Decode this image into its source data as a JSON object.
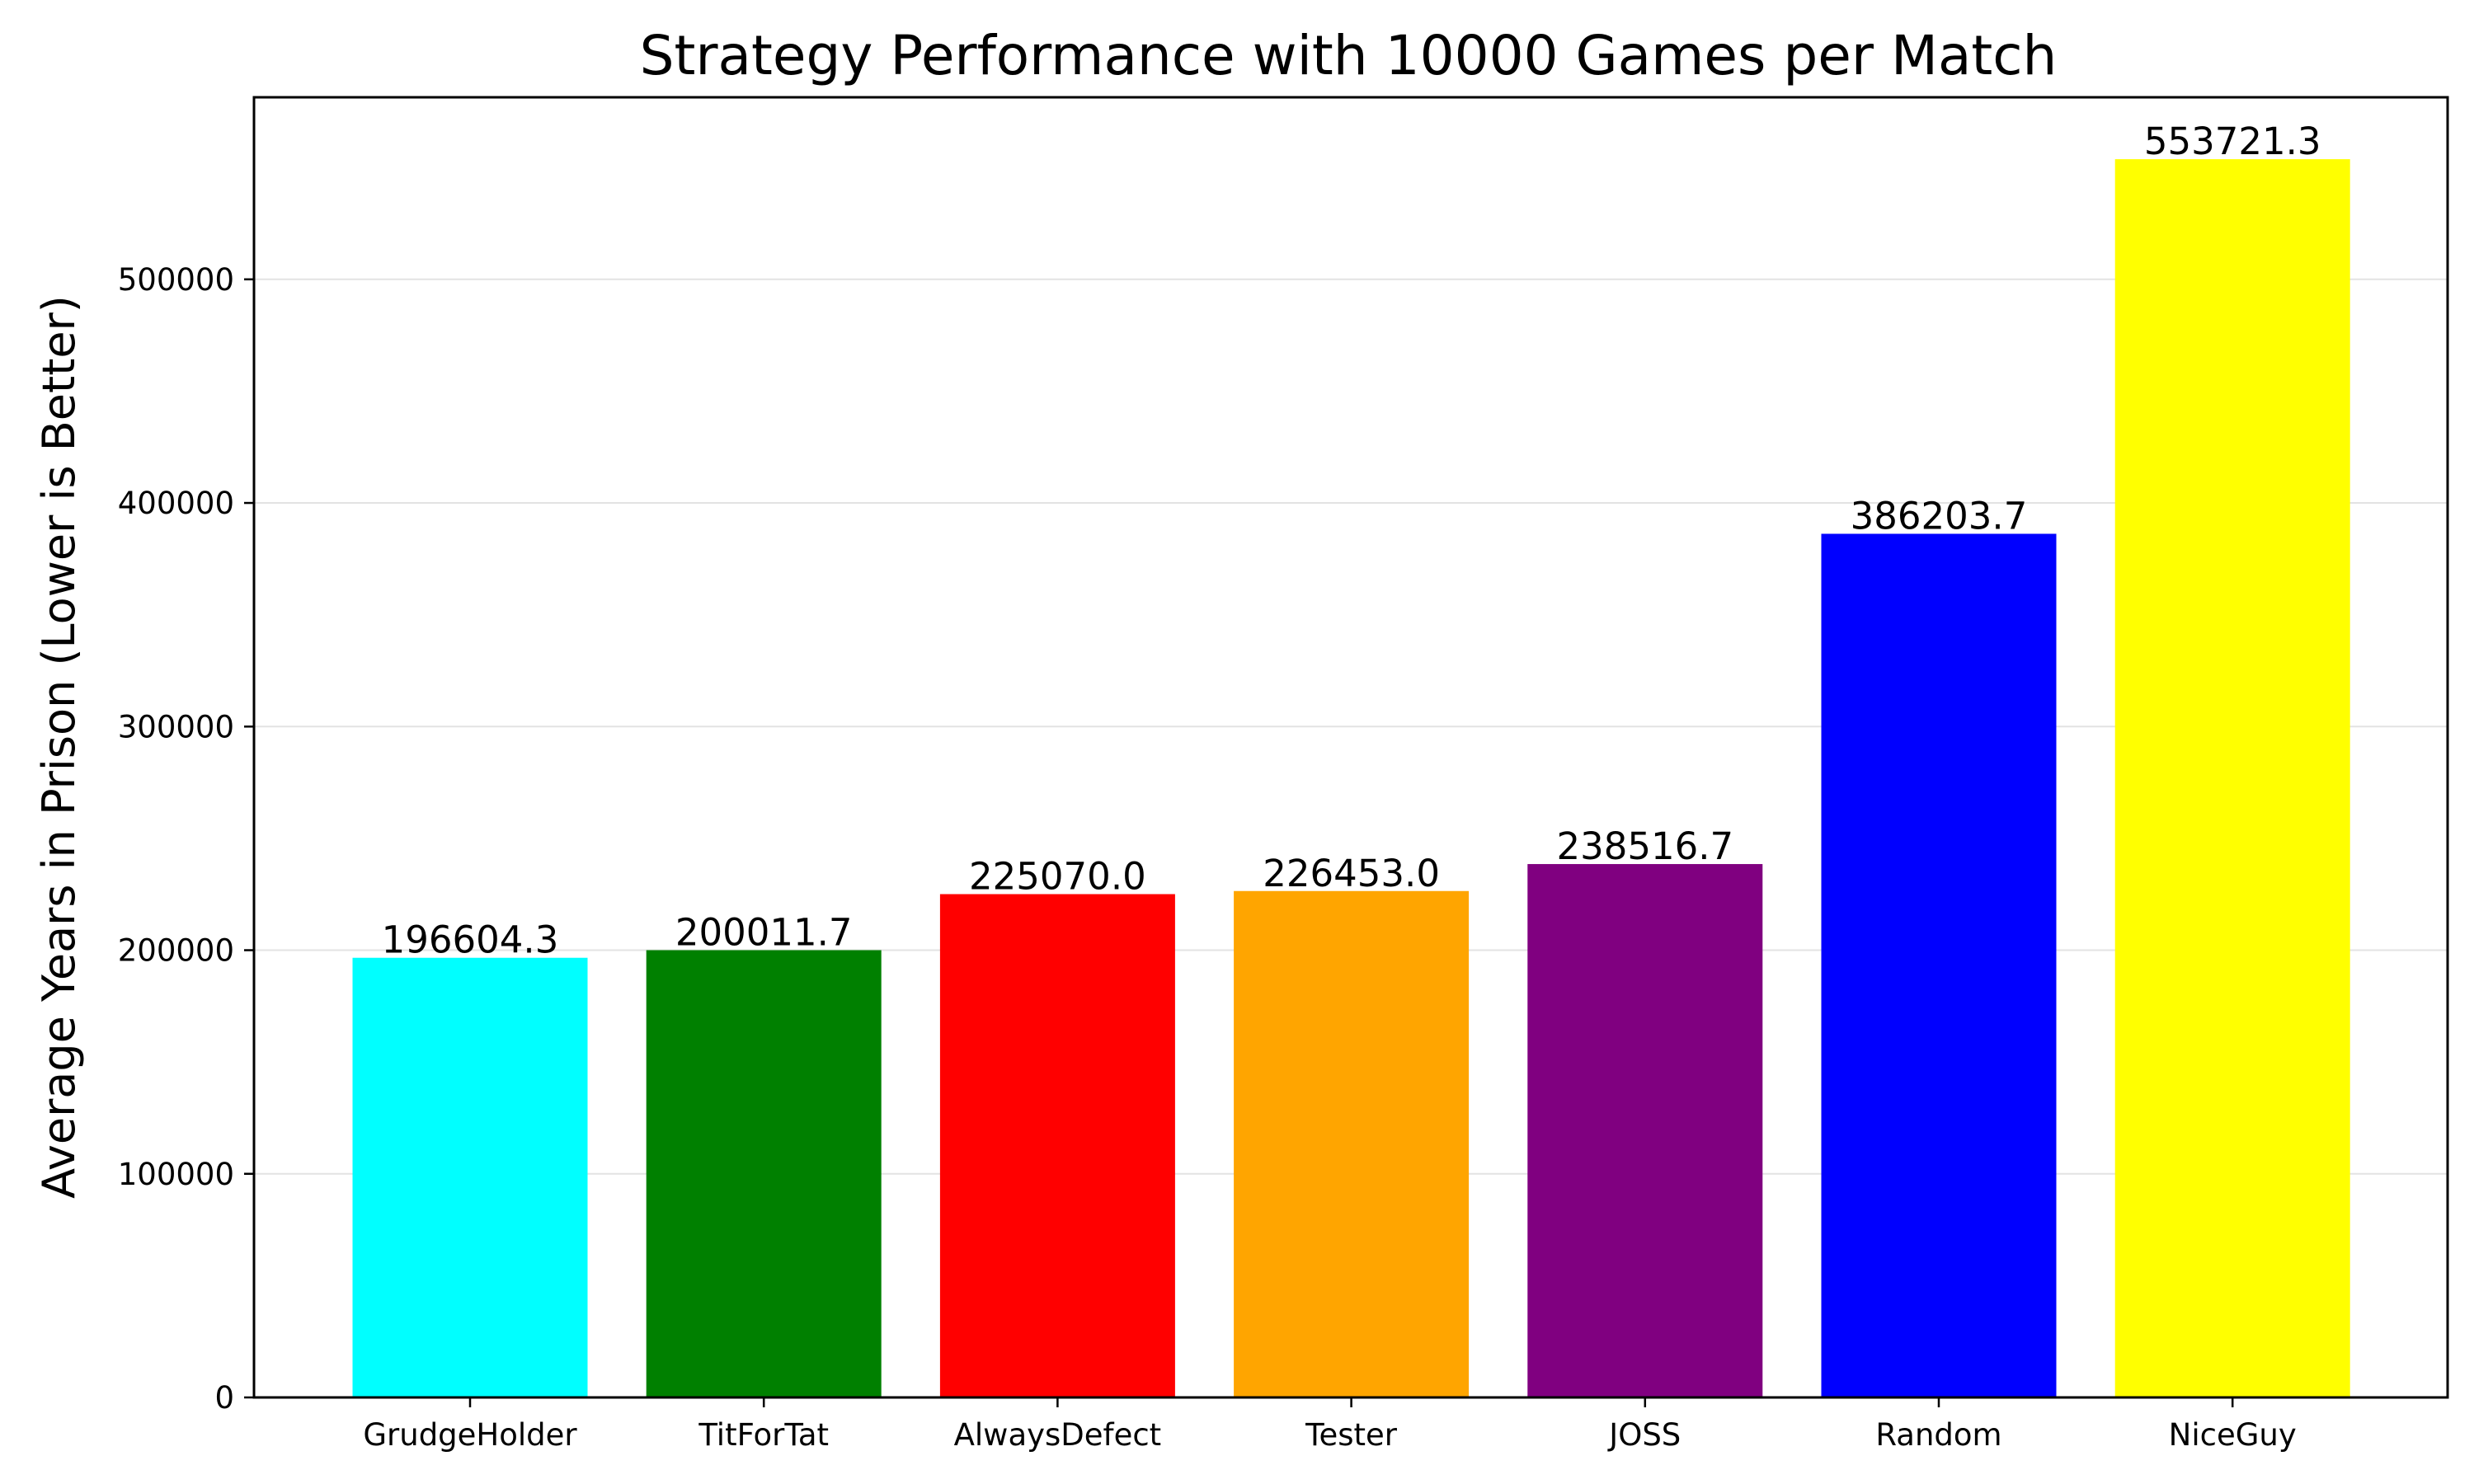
{
  "chart_data": {
    "type": "bar",
    "title": "Strategy Performance with 10000 Games per Match",
    "xlabel": "",
    "ylabel": "Average Years in Prison (Lower is Better)",
    "categories": [
      "GrudgeHolder",
      "TitForTat",
      "AlwaysDefect",
      "Tester",
      "JOSS",
      "Random",
      "NiceGuy"
    ],
    "values": [
      196604.3,
      200011.7,
      225070.0,
      226453.0,
      238516.7,
      386203.7,
      553721.3
    ],
    "value_labels": [
      "196604.3",
      "200011.7",
      "225070.0",
      "226453.0",
      "238516.7",
      "386203.7",
      "553721.3"
    ],
    "colors": [
      "#00ffff",
      "#008000",
      "#ff0000",
      "#ffa500",
      "#800080",
      "#0000ff",
      "#ffff00"
    ],
    "ylim": [
      0,
      581407
    ],
    "yticks": [
      0,
      100000,
      200000,
      300000,
      400000,
      500000
    ],
    "ytick_labels": [
      "0",
      "100000",
      "200000",
      "300000",
      "400000",
      "500000"
    ],
    "grid": "y",
    "legend": "none"
  }
}
